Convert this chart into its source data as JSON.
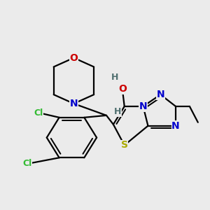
{
  "background_color": "#ebebeb",
  "figsize": [
    3.0,
    3.0
  ],
  "dpi": 100,
  "bond_lw": 1.6,
  "bond_color": "#000000",
  "atom_colors": {
    "O": "#cc0000",
    "N": "#0000cc",
    "S": "#aaaa00",
    "Cl": "#33bb33",
    "H": "#507070",
    "C": "#000000"
  }
}
